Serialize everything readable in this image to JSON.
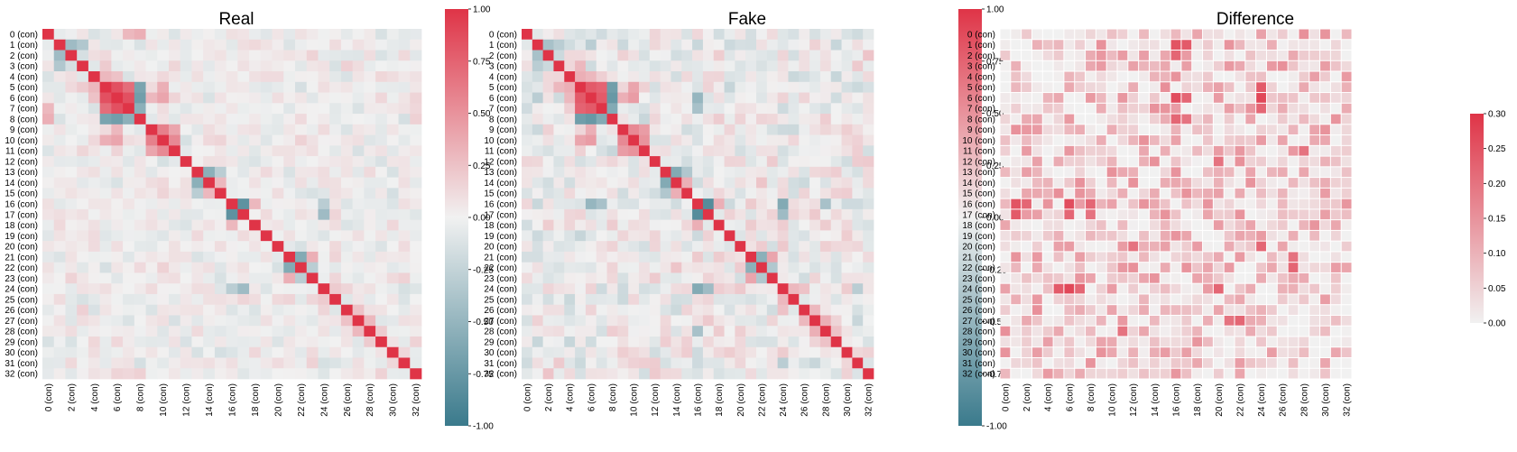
{
  "colors": {
    "negative": "#3a7a8c",
    "zero": "#f1f1f1",
    "positive": "#df3447",
    "diff_low": "#f1f1f1",
    "diff_high": "#df3447",
    "cell_gap": "#ffffff"
  },
  "chart_data": [
    {
      "type": "heatmap",
      "title": "Real",
      "n": 33,
      "row_labels_pattern": "{i} (con)",
      "x_tick_every": 2,
      "zlim": [
        -1.0,
        1.0
      ],
      "colorbar_ticks": [
        "1.00",
        "0.75",
        "0.50",
        "0.25",
        "0.00",
        "-0.25",
        "-0.50",
        "-0.75",
        "-1.00"
      ],
      "strong_pairs": [
        [
          1,
          2,
          -0.45
        ],
        [
          1,
          3,
          -0.35
        ],
        [
          2,
          3,
          -0.15
        ],
        [
          5,
          6,
          0.85
        ],
        [
          5,
          7,
          0.7
        ],
        [
          6,
          7,
          0.85
        ],
        [
          5,
          8,
          -0.65
        ],
        [
          6,
          8,
          -0.7
        ],
        [
          7,
          8,
          -0.55
        ],
        [
          4,
          5,
          0.3
        ],
        [
          4,
          6,
          0.25
        ],
        [
          5,
          10,
          0.35
        ],
        [
          6,
          10,
          0.4
        ],
        [
          9,
          10,
          0.6
        ],
        [
          9,
          11,
          0.4
        ],
        [
          10,
          11,
          0.55
        ],
        [
          6,
          9,
          0.3
        ],
        [
          3,
          5,
          0.2
        ],
        [
          13,
          14,
          -0.55
        ],
        [
          13,
          15,
          -0.3
        ],
        [
          14,
          15,
          0.3
        ],
        [
          16,
          17,
          -0.8
        ],
        [
          16,
          18,
          0.3
        ],
        [
          17,
          24,
          -0.45
        ],
        [
          16,
          24,
          -0.3
        ],
        [
          21,
          22,
          -0.6
        ],
        [
          21,
          23,
          0.35
        ],
        [
          22,
          23,
          -0.3
        ],
        [
          24,
          25,
          0.2
        ],
        [
          24,
          26,
          0.15
        ],
        [
          27,
          28,
          0.3
        ],
        [
          26,
          27,
          0.25
        ],
        [
          28,
          29,
          0.2
        ],
        [
          0,
          8,
          0.35
        ],
        [
          0,
          7,
          0.3
        ]
      ],
      "noise_amplitude": 0.18,
      "seed": 11
    },
    {
      "type": "heatmap",
      "title": "Fake",
      "n": 33,
      "row_labels_pattern": "{i} (con)",
      "x_tick_every": 2,
      "zlim": [
        -1.0,
        1.0
      ],
      "colorbar_ticks": [
        "1.00",
        "0.75",
        "0.50",
        "0.25",
        "0.00",
        "-0.25",
        "-0.50",
        "-0.75",
        "-1.00"
      ],
      "strong_pairs": [
        [
          1,
          2,
          -0.4
        ],
        [
          1,
          3,
          -0.3
        ],
        [
          2,
          3,
          -0.2
        ],
        [
          1,
          6,
          -0.3
        ],
        [
          5,
          6,
          0.8
        ],
        [
          5,
          7,
          0.75
        ],
        [
          6,
          7,
          0.8
        ],
        [
          5,
          8,
          -0.7
        ],
        [
          6,
          8,
          -0.75
        ],
        [
          7,
          8,
          -0.6
        ],
        [
          4,
          5,
          0.35
        ],
        [
          4,
          6,
          0.3
        ],
        [
          5,
          10,
          0.4
        ],
        [
          6,
          10,
          0.45
        ],
        [
          9,
          10,
          0.55
        ],
        [
          9,
          11,
          0.45
        ],
        [
          10,
          11,
          0.5
        ],
        [
          6,
          9,
          0.35
        ],
        [
          3,
          5,
          0.3
        ],
        [
          13,
          14,
          -0.6
        ],
        [
          13,
          15,
          -0.35
        ],
        [
          14,
          15,
          0.35
        ],
        [
          16,
          17,
          -0.85
        ],
        [
          16,
          18,
          0.35
        ],
        [
          16,
          24,
          -0.6
        ],
        [
          17,
          24,
          -0.45
        ],
        [
          6,
          16,
          -0.5
        ],
        [
          7,
          16,
          -0.4
        ],
        [
          21,
          22,
          -0.55
        ],
        [
          21,
          23,
          0.4
        ],
        [
          22,
          23,
          -0.35
        ],
        [
          24,
          25,
          0.3
        ],
        [
          24,
          26,
          0.25
        ],
        [
          27,
          28,
          0.35
        ],
        [
          26,
          27,
          0.3
        ],
        [
          28,
          29,
          0.25
        ],
        [
          16,
          28,
          -0.4
        ],
        [
          24,
          31,
          -0.3
        ]
      ],
      "noise_amplitude": 0.25,
      "seed": 23
    },
    {
      "type": "heatmap",
      "title": "Difference",
      "n": 33,
      "row_labels_pattern": "{i} (con)",
      "x_tick_every": 2,
      "zlim": [
        0.0,
        0.3
      ],
      "colorbar_ticks": [
        "0.30",
        "0.25",
        "0.20",
        "0.15",
        "0.10",
        "0.05",
        "0.00"
      ],
      "strong_pairs": [
        [
          1,
          16,
          0.26
        ],
        [
          1,
          17,
          0.24
        ],
        [
          2,
          16,
          0.22
        ],
        [
          5,
          24,
          0.26
        ],
        [
          6,
          24,
          0.25
        ],
        [
          6,
          16,
          0.24
        ],
        [
          16,
          6,
          0.26
        ],
        [
          17,
          6,
          0.22
        ],
        [
          24,
          6,
          0.27
        ],
        [
          24,
          5,
          0.24
        ],
        [
          24,
          7,
          0.2
        ],
        [
          7,
          24,
          0.22
        ],
        [
          16,
          1,
          0.25
        ],
        [
          17,
          1,
          0.24
        ],
        [
          16,
          8,
          0.22
        ],
        [
          17,
          8,
          0.2
        ],
        [
          27,
          21,
          0.22
        ],
        [
          27,
          22,
          0.22
        ],
        [
          28,
          28,
          0.0
        ],
        [
          22,
          27,
          0.22
        ],
        [
          21,
          27,
          0.2
        ],
        [
          20,
          24,
          0.22
        ],
        [
          12,
          20,
          0.2
        ],
        [
          11,
          28,
          0.2
        ],
        [
          28,
          11,
          0.2
        ]
      ],
      "noise_amplitude": 0.12,
      "seed": 37
    }
  ]
}
